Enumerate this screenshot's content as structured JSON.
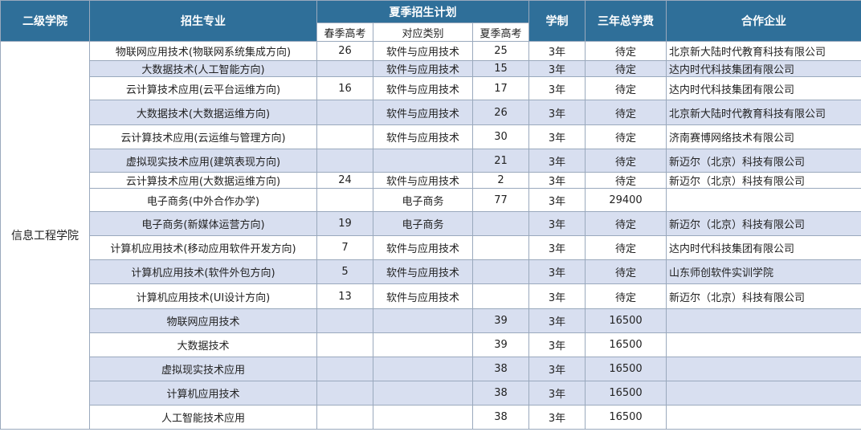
{
  "headers": {
    "college": "二级学院",
    "major": "招生专业",
    "plan": "夏季招生计划",
    "spring": "春季高考",
    "category": "对应类别",
    "summer": "夏季高考",
    "duration": "学制",
    "fee": "三年总学费",
    "partner": "合作企业"
  },
  "college_name": "信息工程学院",
  "rows": [
    {
      "major": "物联网应用技术(物联网系统集成方向)",
      "spring": "26",
      "category": "软件与应用技术",
      "summer": "25",
      "duration": "3年",
      "fee": "待定",
      "partner": "北京新大陆时代教育科技有限公司"
    },
    {
      "major": "大数据技术(人工智能方向)",
      "spring": "",
      "category": "软件与应用技术",
      "summer": "15",
      "duration": "3年",
      "fee": "待定",
      "partner": "达内时代科技集团有限公司"
    },
    {
      "major": "云计算技术应用(云平台运维方向)",
      "spring": "16",
      "category": "软件与应用技术",
      "summer": "17",
      "duration": "3年",
      "fee": "待定",
      "partner": "达内时代科技集团有限公司"
    },
    {
      "major": "大数据技术(大数据运维方向)",
      "spring": "",
      "category": "软件与应用技术",
      "summer": "26",
      "duration": "3年",
      "fee": "待定",
      "partner": "北京新大陆时代教育科技有限公司"
    },
    {
      "major": "云计算技术应用(云运维与管理方向)",
      "spring": "",
      "category": "软件与应用技术",
      "summer": "30",
      "duration": "3年",
      "fee": "待定",
      "partner": "济南赛博网络技术有限公司"
    },
    {
      "major": "虚拟现实技术应用(建筑表现方向)",
      "spring": "",
      "category": "",
      "summer": "21",
      "duration": "3年",
      "fee": "待定",
      "partner": "新迈尔（北京）科技有限公司"
    },
    {
      "major": "云计算技术应用(大数据运维方向)",
      "spring": "24",
      "category": "软件与应用技术",
      "summer": "2",
      "duration": "3年",
      "fee": "待定",
      "partner": "新迈尔（北京）科技有限公司"
    },
    {
      "major": "电子商务(中外合作办学)",
      "spring": "",
      "category": "电子商务",
      "summer": "77",
      "duration": "3年",
      "fee": "29400",
      "partner": ""
    },
    {
      "major": "电子商务(新媒体运营方向)",
      "spring": "19",
      "category": "电子商务",
      "summer": "",
      "duration": "3年",
      "fee": "待定",
      "partner": "新迈尔（北京）科技有限公司"
    },
    {
      "major": "计算机应用技术(移动应用软件开发方向)",
      "spring": "7",
      "category": "软件与应用技术",
      "summer": "",
      "duration": "3年",
      "fee": "待定",
      "partner": "达内时代科技集团有限公司"
    },
    {
      "major": "计算机应用技术(软件外包方向)",
      "spring": "5",
      "category": "软件与应用技术",
      "summer": "",
      "duration": "3年",
      "fee": "待定",
      "partner": "山东师创软件实训学院"
    },
    {
      "major": "计算机应用技术(UI设计方向)",
      "spring": "13",
      "category": "软件与应用技术",
      "summer": "",
      "duration": "3年",
      "fee": "待定",
      "partner": "新迈尔（北京）科技有限公司"
    },
    {
      "major": "物联网应用技术",
      "spring": "",
      "category": "",
      "summer": "39",
      "duration": "3年",
      "fee": "16500",
      "partner": ""
    },
    {
      "major": "大数据技术",
      "spring": "",
      "category": "",
      "summer": "39",
      "duration": "3年",
      "fee": "16500",
      "partner": ""
    },
    {
      "major": "虚拟现实技术应用",
      "spring": "",
      "category": "",
      "summer": "38",
      "duration": "3年",
      "fee": "16500",
      "partner": ""
    },
    {
      "major": "计算机应用技术",
      "spring": "",
      "category": "",
      "summer": "38",
      "duration": "3年",
      "fee": "16500",
      "partner": ""
    },
    {
      "major": "人工智能技术应用",
      "spring": "",
      "category": "",
      "summer": "38",
      "duration": "3年",
      "fee": "16500",
      "partner": ""
    }
  ]
}
